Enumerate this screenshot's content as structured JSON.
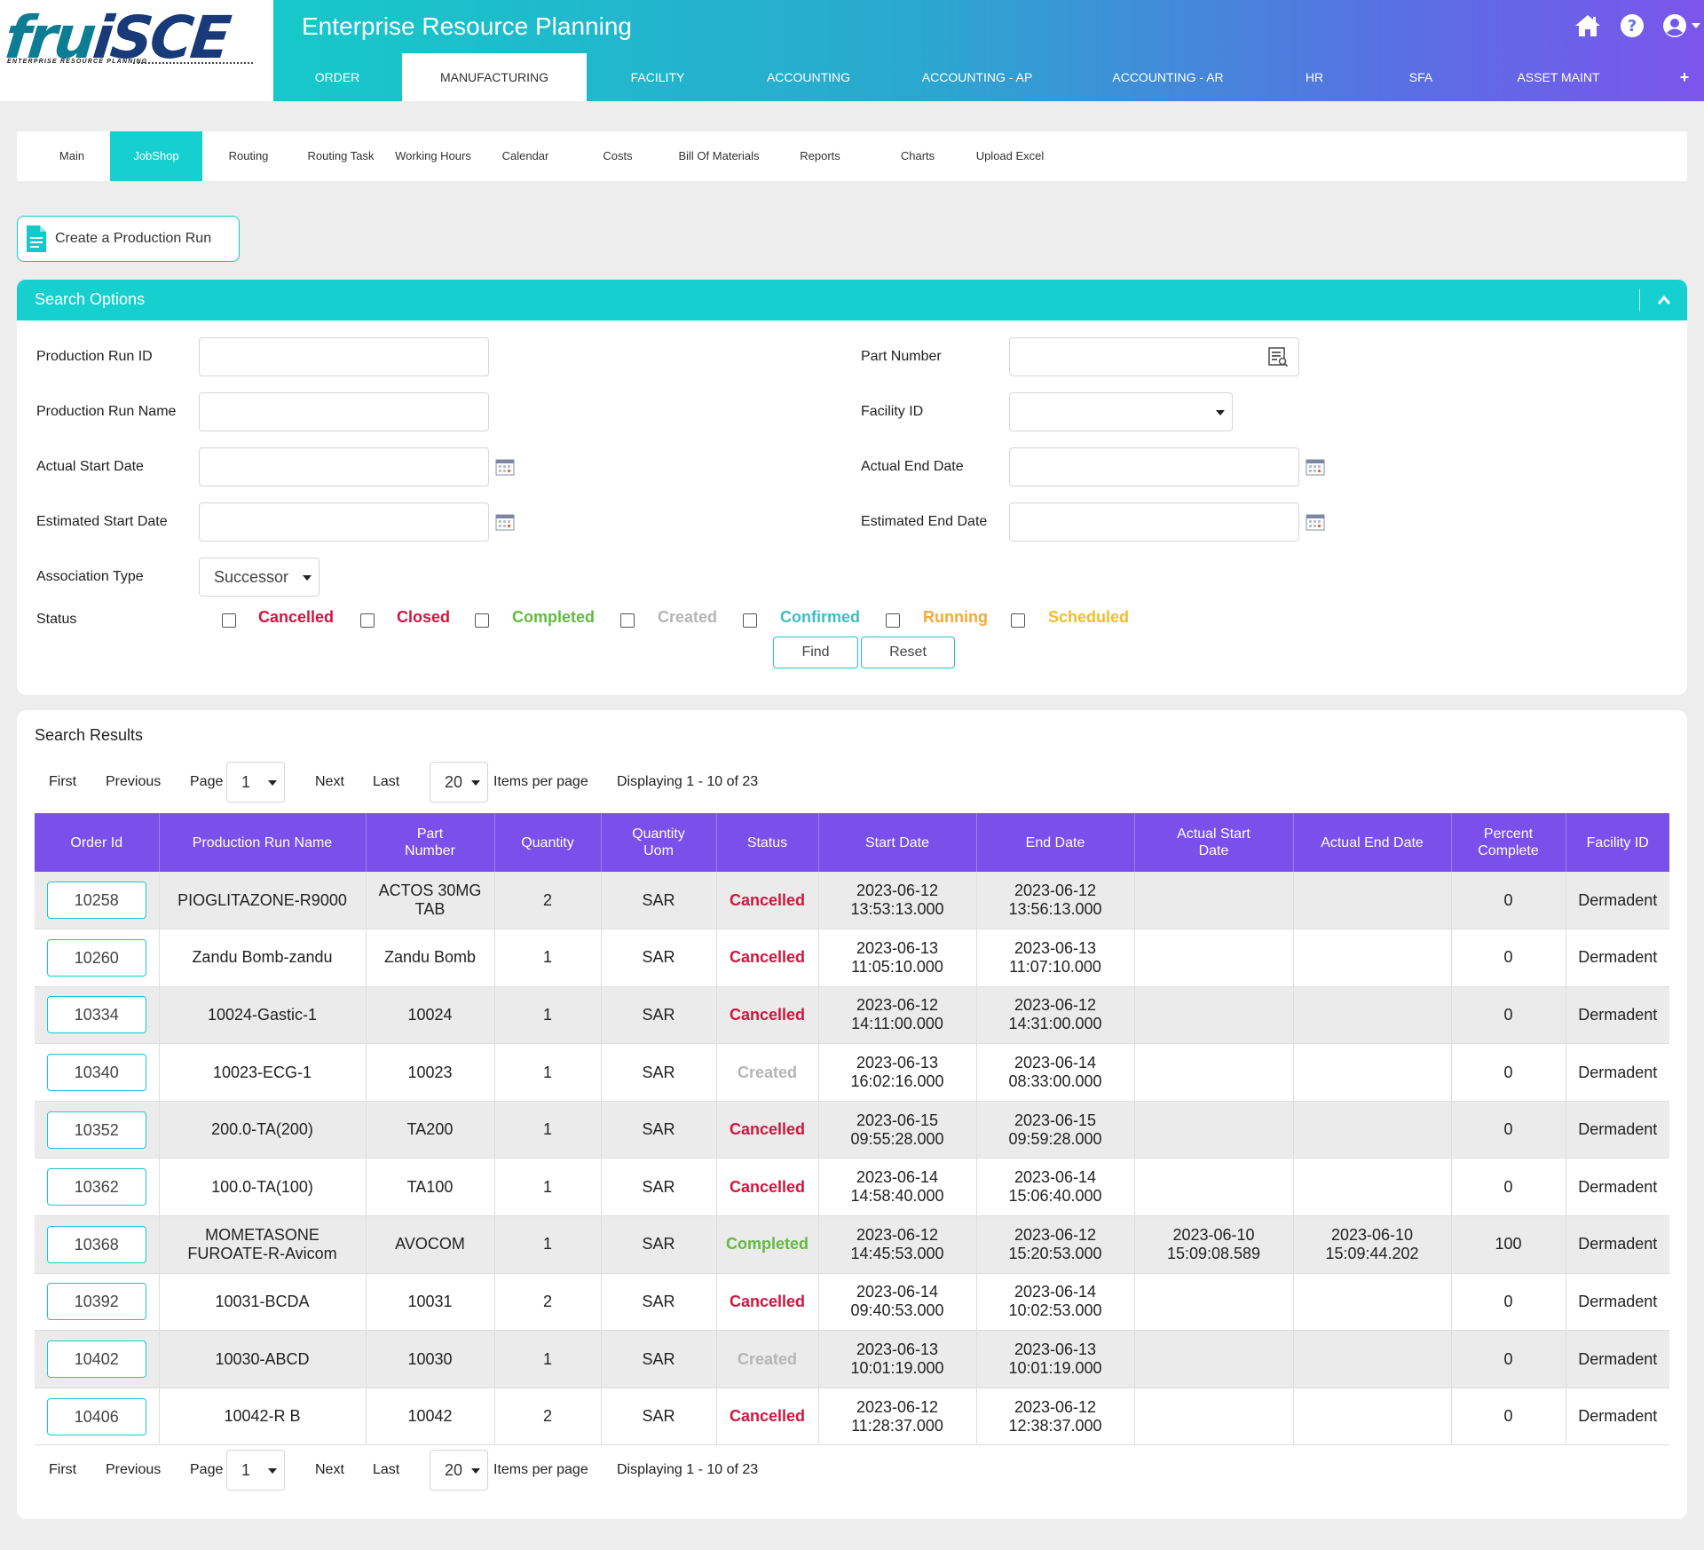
{
  "header": {
    "logo": "fruiSCE",
    "logo_tagline": "ENTERPRISE RESOURCE PLANNING",
    "title": "Enterprise Resource Planning",
    "nav": [
      "ORDER",
      "MANUFACTURING",
      "FACILITY",
      "ACCOUNTING",
      "ACCOUNTING - AP",
      "ACCOUNTING - AR",
      "HR",
      "SFA",
      "ASSET MAINT",
      "+"
    ],
    "active_nav": "MANUFACTURING"
  },
  "subnav": {
    "items": [
      "Main",
      "JobShop",
      "Routing",
      "Routing Task",
      "Working Hours",
      "Calendar",
      "Costs",
      "Bill Of Materials",
      "Reports",
      "Charts",
      "Upload Excel"
    ],
    "active": "JobShop"
  },
  "create_button": "Create a Production Run",
  "search": {
    "title": "Search Options",
    "fields": {
      "production_run_id": "Production Run ID",
      "production_run_name": "Production Run Name",
      "actual_start_date": "Actual Start Date",
      "estimated_start_date": "Estimated Start Date",
      "association_type": "Association Type",
      "part_number": "Part Number",
      "facility_id": "Facility ID",
      "actual_end_date": "Actual End Date",
      "estimated_end_date": "Estimated End Date",
      "status": "Status"
    },
    "association_value": "Successor",
    "facility_value": "",
    "statuses": [
      {
        "label": "Cancelled",
        "color": "#d0163e"
      },
      {
        "label": "Closed",
        "color": "#d0163e"
      },
      {
        "label": "Completed",
        "color": "#63bb3c"
      },
      {
        "label": "Created",
        "color": "#b5b5b5"
      },
      {
        "label": "Confirmed",
        "color": "#3fbcc2"
      },
      {
        "label": "Running",
        "color": "#f4a93a"
      },
      {
        "label": "Scheduled",
        "color": "#f4bc2a"
      }
    ],
    "find": "Find",
    "reset": "Reset"
  },
  "results": {
    "title": "Search Results",
    "pager": {
      "first": "First",
      "previous": "Previous",
      "page_label": "Page",
      "page": "1",
      "next": "Next",
      "last": "Last",
      "per_page": "20",
      "per_page_label": "Items per page",
      "displaying": "Displaying 1 - 10 of 23"
    },
    "columns": [
      "Order Id",
      "Production Run Name",
      "Part Number",
      "Quantity",
      "Quantity Uom",
      "Status",
      "Start Date",
      "End Date",
      "Actual Start Date",
      "Actual End Date",
      "Percent Complete",
      "Facility ID"
    ],
    "rows": [
      {
        "id": "10258",
        "name": "PIOGLITAZONE-R9000",
        "part": "ACTOS 30MG TAB",
        "qty": "2",
        "uom": "SAR",
        "status": "Cancelled",
        "start": "2023-06-12 13:53:13.000",
        "end": "2023-06-12 13:56:13.000",
        "astart": "",
        "aend": "",
        "pct": "0",
        "facility": "Dermadent"
      },
      {
        "id": "10260",
        "name": "Zandu Bomb-zandu",
        "part": "Zandu Bomb",
        "qty": "1",
        "uom": "SAR",
        "status": "Cancelled",
        "start": "2023-06-13 11:05:10.000",
        "end": "2023-06-13 11:07:10.000",
        "astart": "",
        "aend": "",
        "pct": "0",
        "facility": "Dermadent"
      },
      {
        "id": "10334",
        "name": "10024-Gastic-1",
        "part": "10024",
        "qty": "1",
        "uom": "SAR",
        "status": "Cancelled",
        "start": "2023-06-12 14:11:00.000",
        "end": "2023-06-12 14:31:00.000",
        "astart": "",
        "aend": "",
        "pct": "0",
        "facility": "Dermadent"
      },
      {
        "id": "10340",
        "name": "10023-ECG-1",
        "part": "10023",
        "qty": "1",
        "uom": "SAR",
        "status": "Created",
        "start": "2023-06-13 16:02:16.000",
        "end": "2023-06-14 08:33:00.000",
        "astart": "",
        "aend": "",
        "pct": "0",
        "facility": "Dermadent"
      },
      {
        "id": "10352",
        "name": "200.0-TA(200)",
        "part": "TA200",
        "qty": "1",
        "uom": "SAR",
        "status": "Cancelled",
        "start": "2023-06-15 09:55:28.000",
        "end": "2023-06-15 09:59:28.000",
        "astart": "",
        "aend": "",
        "pct": "0",
        "facility": "Dermadent"
      },
      {
        "id": "10362",
        "name": "100.0-TA(100)",
        "part": "TA100",
        "qty": "1",
        "uom": "SAR",
        "status": "Cancelled",
        "start": "2023-06-14 14:58:40.000",
        "end": "2023-06-14 15:06:40.000",
        "astart": "",
        "aend": "",
        "pct": "0",
        "facility": "Dermadent"
      },
      {
        "id": "10368",
        "name": "MOMETASONE FUROATE-R-Avicom",
        "part": "AVOCOM",
        "qty": "1",
        "uom": "SAR",
        "status": "Completed",
        "start": "2023-06-12 14:45:53.000",
        "end": "2023-06-12 15:20:53.000",
        "astart": "2023-06-10 15:09:08.589",
        "aend": "2023-06-10 15:09:44.202",
        "pct": "100",
        "facility": "Dermadent"
      },
      {
        "id": "10392",
        "name": "10031-BCDA",
        "part": "10031",
        "qty": "2",
        "uom": "SAR",
        "status": "Cancelled",
        "start": "2023-06-14 09:40:53.000",
        "end": "2023-06-14 10:02:53.000",
        "astart": "",
        "aend": "",
        "pct": "0",
        "facility": "Dermadent"
      },
      {
        "id": "10402",
        "name": "10030-ABCD",
        "part": "10030",
        "qty": "1",
        "uom": "SAR",
        "status": "Created",
        "start": "2023-06-13 10:01:19.000",
        "end": "2023-06-13 10:01:19.000",
        "astart": "",
        "aend": "",
        "pct": "0",
        "facility": "Dermadent"
      },
      {
        "id": "10406",
        "name": "10042-R B",
        "part": "10042",
        "qty": "2",
        "uom": "SAR",
        "status": "Cancelled",
        "start": "2023-06-12 11:28:37.000",
        "end": "2023-06-12 12:38:37.000",
        "astart": "",
        "aend": "",
        "pct": "0",
        "facility": "Dermadent"
      }
    ]
  }
}
